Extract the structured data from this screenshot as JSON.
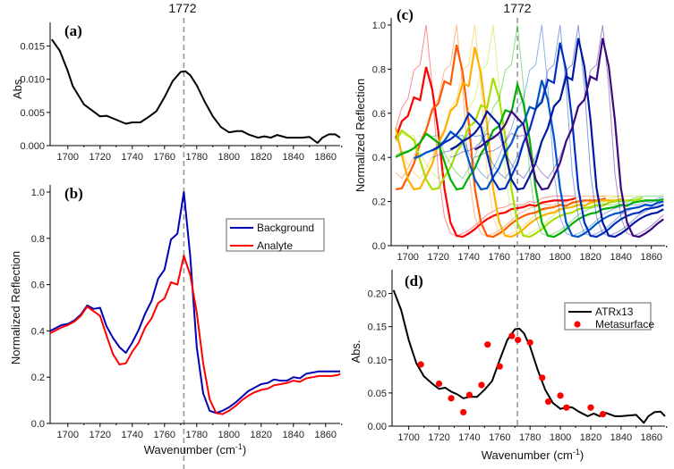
{
  "chart_data": [
    {
      "panel": "(a)",
      "type": "line",
      "annotation": "1772",
      "marker_x": 1772,
      "xlabel": "",
      "ylabel": "Abs.",
      "xlim": [
        1689,
        1869
      ],
      "ylim": [
        0,
        0.0175
      ],
      "xticks": [
        "1700",
        "1720",
        "1740",
        "1760",
        "1780",
        "1800",
        "1820",
        "1840",
        "1860"
      ],
      "yticks": [
        "0.000",
        "0.005",
        "0.010",
        "0.015"
      ],
      "series": [
        {
          "color": "#000000",
          "x": [
            1690,
            1695,
            1700,
            1703,
            1706,
            1710,
            1715,
            1720,
            1724,
            1728,
            1732,
            1736,
            1740,
            1745,
            1750,
            1755,
            1760,
            1765,
            1770,
            1773,
            1776,
            1780,
            1785,
            1790,
            1795,
            1800,
            1805,
            1808,
            1812,
            1818,
            1822,
            1826,
            1830,
            1836,
            1840,
            1845,
            1850,
            1855,
            1858,
            1862,
            1866,
            1870
          ],
          "y": [
            0.016,
            0.0143,
            0.0112,
            0.009,
            0.0078,
            0.0062,
            0.0053,
            0.0044,
            0.0045,
            0.0041,
            0.0037,
            0.0033,
            0.0035,
            0.0035,
            0.0043,
            0.0052,
            0.0073,
            0.0097,
            0.0111,
            0.0112,
            0.0106,
            0.0091,
            0.0066,
            0.0044,
            0.0028,
            0.002,
            0.0022,
            0.0022,
            0.0017,
            0.0012,
            0.0014,
            0.0012,
            0.0016,
            0.0012,
            0.0012,
            0.0012,
            0.0013,
            0.0004,
            0.0012,
            0.0017,
            0.0017,
            0.0012
          ]
        }
      ]
    },
    {
      "panel": "(b)",
      "type": "line",
      "marker_x": 1772,
      "xlabel": "Wavenumber (cm",
      "xlabel_sup": "-1",
      "xlabel_end": ")",
      "ylabel": "Normalized Reflection",
      "xlim": [
        1689,
        1869
      ],
      "ylim": [
        0,
        1.0
      ],
      "xticks": [
        "1700",
        "1720",
        "1740",
        "1760",
        "1780",
        "1800",
        "1820",
        "1840",
        "1860"
      ],
      "yticks": [
        "0.0",
        "0.2",
        "0.4",
        "0.6",
        "0.8",
        "1.0"
      ],
      "legend": "top-right",
      "series": [
        {
          "name": "Background",
          "color": "#0000b4",
          "x": [
            1688,
            1692,
            1696,
            1700,
            1704,
            1708,
            1712,
            1716,
            1720,
            1724,
            1728,
            1732,
            1736,
            1740,
            1744,
            1748,
            1752,
            1756,
            1760,
            1764,
            1768,
            1772,
            1776,
            1780,
            1784,
            1788,
            1792,
            1796,
            1800,
            1804,
            1808,
            1812,
            1816,
            1820,
            1824,
            1828,
            1832,
            1836,
            1840,
            1844,
            1848,
            1852,
            1856,
            1860,
            1864,
            1868,
            1870
          ],
          "y": [
            0.4,
            0.41,
            0.425,
            0.43,
            0.445,
            0.47,
            0.51,
            0.495,
            0.5,
            0.42,
            0.37,
            0.33,
            0.305,
            0.35,
            0.405,
            0.475,
            0.53,
            0.625,
            0.665,
            0.795,
            0.82,
            1.0,
            0.72,
            0.33,
            0.13,
            0.055,
            0.045,
            0.055,
            0.07,
            0.09,
            0.115,
            0.14,
            0.155,
            0.17,
            0.175,
            0.19,
            0.185,
            0.185,
            0.2,
            0.195,
            0.215,
            0.22,
            0.225,
            0.225,
            0.225,
            0.225,
            0.225
          ]
        },
        {
          "name": "Analyte",
          "color": "#ff0000",
          "x": [
            1688,
            1692,
            1696,
            1700,
            1704,
            1708,
            1712,
            1716,
            1720,
            1724,
            1728,
            1732,
            1736,
            1740,
            1744,
            1748,
            1752,
            1756,
            1760,
            1764,
            1768,
            1772,
            1776,
            1780,
            1784,
            1788,
            1792,
            1796,
            1800,
            1804,
            1808,
            1812,
            1816,
            1820,
            1824,
            1828,
            1832,
            1836,
            1840,
            1844,
            1848,
            1852,
            1856,
            1860,
            1864,
            1868,
            1870
          ],
          "y": [
            0.39,
            0.4,
            0.415,
            0.425,
            0.44,
            0.465,
            0.505,
            0.485,
            0.465,
            0.38,
            0.3,
            0.255,
            0.26,
            0.31,
            0.35,
            0.415,
            0.455,
            0.52,
            0.54,
            0.61,
            0.6,
            0.725,
            0.64,
            0.48,
            0.26,
            0.105,
            0.045,
            0.04,
            0.055,
            0.075,
            0.1,
            0.12,
            0.135,
            0.145,
            0.15,
            0.165,
            0.17,
            0.175,
            0.185,
            0.18,
            0.195,
            0.2,
            0.205,
            0.205,
            0.205,
            0.21,
            0.215
          ]
        }
      ]
    },
    {
      "panel": "(c)",
      "type": "line",
      "annotation": "1772",
      "marker_x": 1772,
      "xlabel": "",
      "ylabel": "Normalized Reflection",
      "xlim": [
        1689,
        1869
      ],
      "ylim": [
        0,
        1.0
      ],
      "xticks": [
        "1700",
        "1720",
        "1740",
        "1760",
        "1780",
        "1800",
        "1820",
        "1840",
        "1860"
      ],
      "yticks": [
        "0.0",
        "0.2",
        "0.4",
        "0.6",
        "0.8",
        "1.0"
      ],
      "resonances": [
        {
          "peak": 1712,
          "background_peak": 1.0,
          "analyte_peak": 0.81,
          "color": "#ff0000"
        },
        {
          "peak": 1732,
          "background_peak": 1.0,
          "analyte_peak": 0.91,
          "color": "#ff5a00"
        },
        {
          "peak": 1744,
          "background_peak": 1.0,
          "analyte_peak": 0.9,
          "color": "#ffb000"
        },
        {
          "peak": 1756,
          "background_peak": 1.0,
          "analyte_peak": 0.76,
          "color": "#a8e000"
        },
        {
          "peak": 1772,
          "background_peak": 1.0,
          "analyte_peak": 0.73,
          "color": "#00b000"
        },
        {
          "peak": 1788,
          "background_peak": 1.0,
          "analyte_peak": 0.75,
          "color": "#0055c8"
        },
        {
          "peak": 1800,
          "background_peak": 1.0,
          "analyte_peak": 0.92,
          "color": "#0030c0"
        },
        {
          "peak": 1812,
          "background_peak": 1.0,
          "analyte_peak": 0.94,
          "color": "#0018a0"
        },
        {
          "peak": 1828,
          "background_peak": 1.0,
          "analyte_peak": 0.94,
          "color": "#3a0a80"
        }
      ]
    },
    {
      "panel": "(d)",
      "type": "line+scatter",
      "marker_x": 1772,
      "xlabel": "Wavenumber (cm",
      "xlabel_sup": "-1",
      "xlabel_end": ")",
      "ylabel": "Abs.",
      "xlim": [
        1689,
        1869
      ],
      "ylim": [
        0,
        0.225
      ],
      "xticks": [
        "1700",
        "1720",
        "1740",
        "1760",
        "1780",
        "1800",
        "1820",
        "1840",
        "1860"
      ],
      "yticks": [
        "0.00",
        "0.05",
        "0.10",
        "0.15",
        "0.20"
      ],
      "legend": "top-right",
      "series": [
        {
          "name": "ATRx13",
          "type": "line",
          "color": "#000000",
          "x": [
            1690,
            1695,
            1700,
            1705,
            1710,
            1715,
            1720,
            1724,
            1728,
            1732,
            1736,
            1740,
            1745,
            1750,
            1755,
            1760,
            1765,
            1770,
            1773,
            1776,
            1780,
            1785,
            1790,
            1795,
            1800,
            1805,
            1808,
            1812,
            1818,
            1822,
            1826,
            1830,
            1836,
            1840,
            1845,
            1850,
            1855,
            1858,
            1862,
            1866,
            1870
          ],
          "y": [
            0.205,
            0.175,
            0.13,
            0.095,
            0.075,
            0.065,
            0.056,
            0.058,
            0.052,
            0.048,
            0.042,
            0.044,
            0.044,
            0.055,
            0.068,
            0.1,
            0.13,
            0.146,
            0.147,
            0.14,
            0.12,
            0.085,
            0.055,
            0.035,
            0.026,
            0.029,
            0.028,
            0.022,
            0.015,
            0.019,
            0.015,
            0.02,
            0.015,
            0.015,
            0.016,
            0.017,
            0.005,
            0.015,
            0.021,
            0.022,
            0.015
          ]
        },
        {
          "name": "Metasurface",
          "type": "scatter",
          "color": "#ff0000",
          "x": [
            1708,
            1720,
            1728,
            1736,
            1740,
            1748,
            1752,
            1760,
            1768,
            1772,
            1780,
            1788,
            1792,
            1800,
            1804,
            1820,
            1828
          ],
          "y": [
            0.093,
            0.064,
            0.042,
            0.021,
            0.047,
            0.062,
            0.123,
            0.09,
            0.136,
            0.13,
            0.126,
            0.073,
            0.037,
            0.046,
            0.028,
            0.028,
            0.018
          ]
        }
      ]
    }
  ]
}
